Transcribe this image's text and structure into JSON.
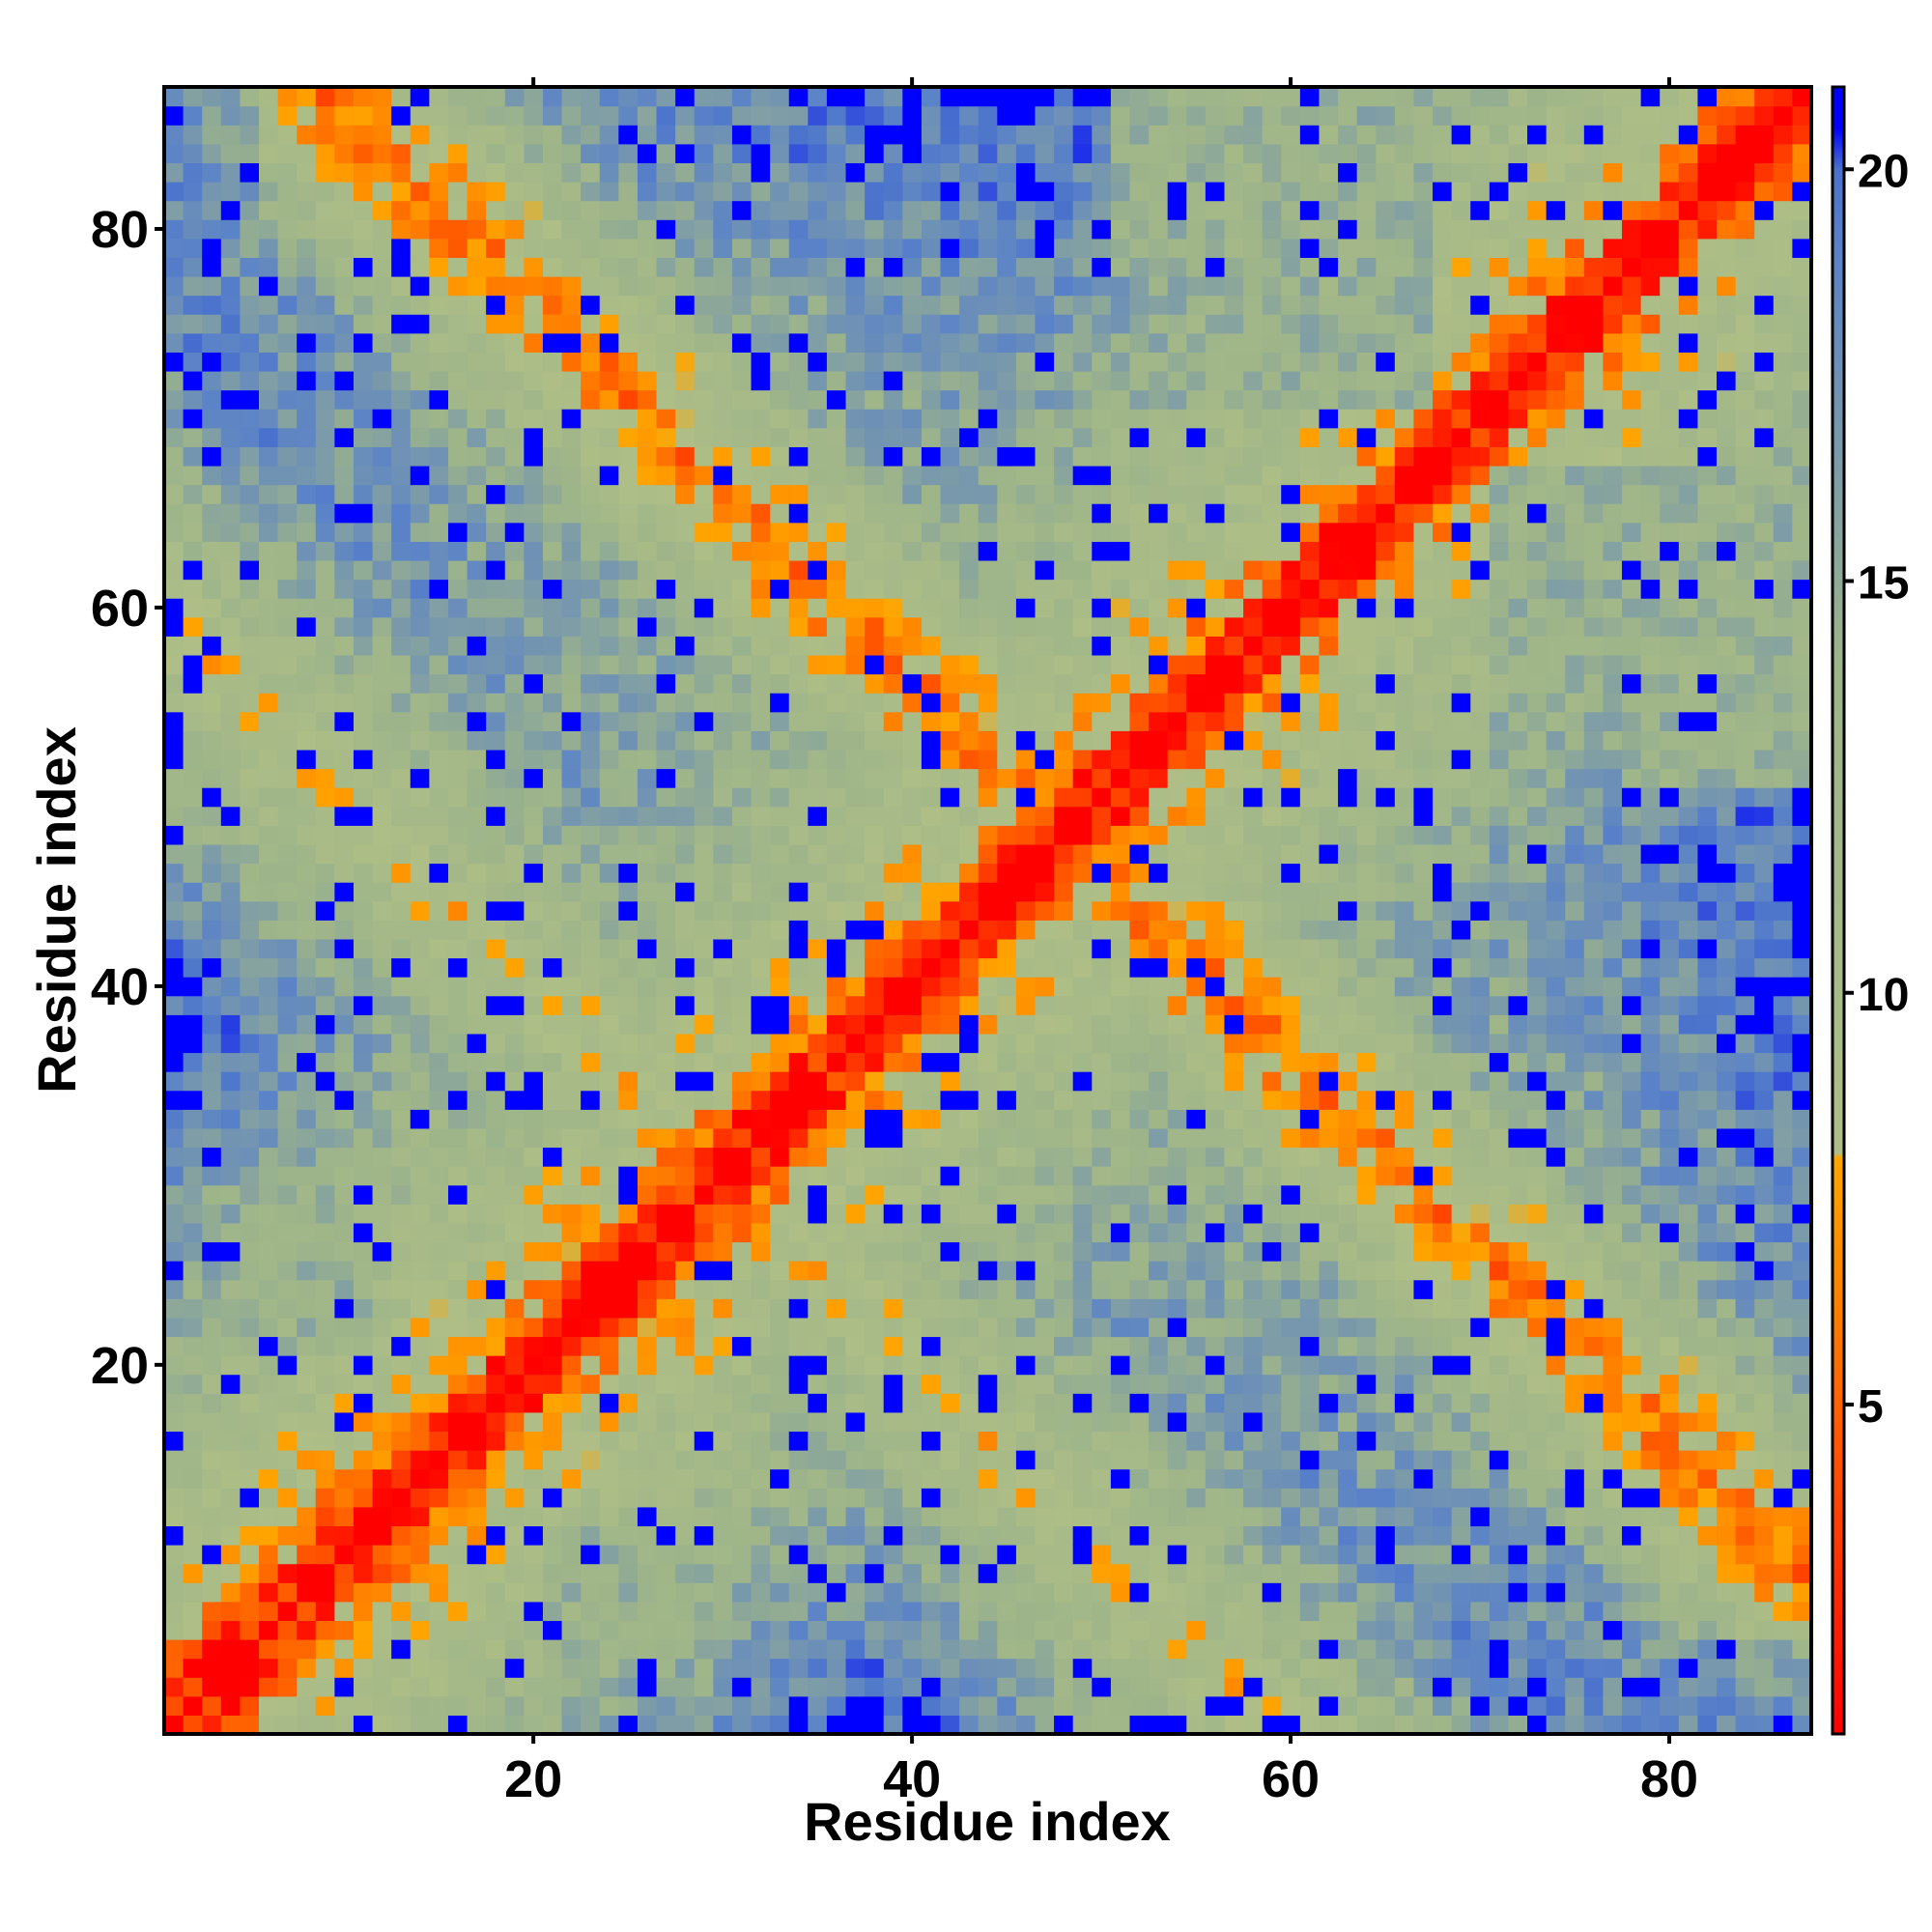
{
  "chart_data": {
    "type": "heatmap",
    "title": "",
    "xlabel": "Residue index",
    "ylabel": "Residue index",
    "n_residues": 87,
    "xlim": [
      1,
      87
    ],
    "ylim": [
      1,
      87
    ],
    "x_ticks": [
      20,
      40,
      60,
      80
    ],
    "y_ticks": [
      20,
      40,
      60,
      80
    ],
    "colorbar": {
      "range": [
        1,
        21
      ],
      "ticks": [
        5,
        10,
        15,
        20
      ],
      "stops": [
        {
          "value": 1.0,
          "color": "#ff0000"
        },
        {
          "value": 6.0,
          "color": "#ff7a00"
        },
        {
          "value": 8.0,
          "color": "#ffa500"
        },
        {
          "value": 8.05,
          "color": "#aebe86"
        },
        {
          "value": 14.0,
          "color": "#9db48a"
        },
        {
          "value": 19.0,
          "color": "#5a82c8"
        },
        {
          "value": 20.0,
          "color": "#4a72cc"
        },
        {
          "value": 20.5,
          "color": "#0000ff"
        },
        {
          "value": 21.0,
          "color": "#0000ff"
        }
      ]
    },
    "value_cap": 21,
    "description_of_pattern": "Symmetric residue-residue distance map; red main diagonal, orange contacts along the diagonal band and the anti-diagonal, blue regions beyond cutoff"
  }
}
